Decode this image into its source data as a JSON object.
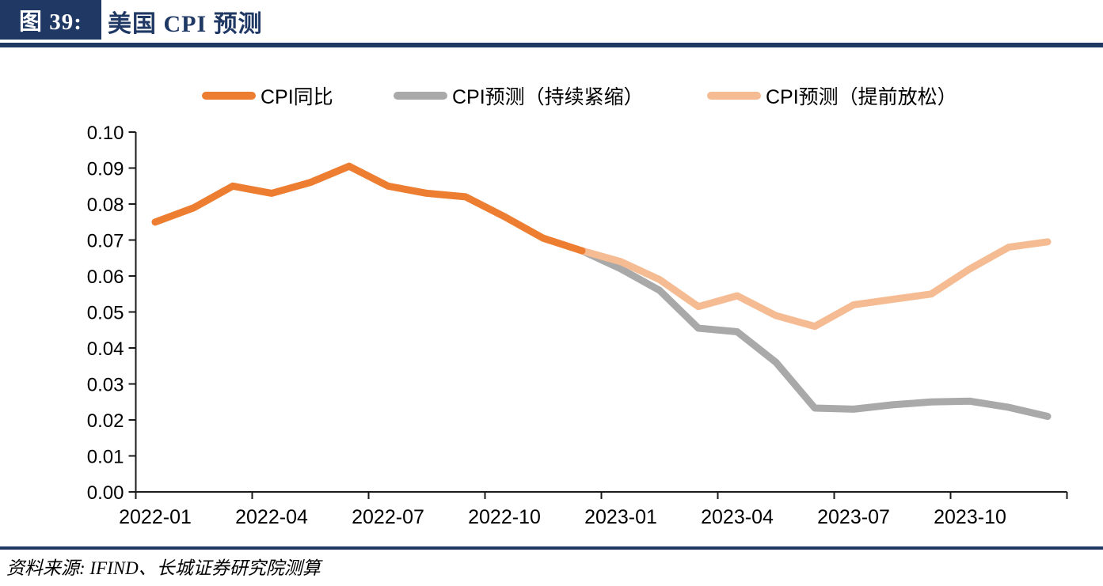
{
  "header": {
    "figure_label": "图 39:",
    "title": "美国 CPI 预测"
  },
  "footer": {
    "source": "资料来源: IFIND、长城证券研究院测算"
  },
  "colors": {
    "navy": "#1F3864",
    "orange": "#ED7D31",
    "gray": "#A9A9A9",
    "peach": "#F5BC93",
    "axis": "#1a1a1a"
  },
  "chart_data": {
    "type": "line",
    "title": "美国 CPI 预测",
    "xlabel": "",
    "ylabel": "",
    "grid": false,
    "legend_position": "top",
    "ylim": [
      0,
      0.1
    ],
    "y_tick_labels": [
      "0.00",
      "0.01",
      "0.02",
      "0.03",
      "0.04",
      "0.05",
      "0.06",
      "0.07",
      "0.08",
      "0.09",
      "0.10"
    ],
    "x_labeled_ticks": [
      "2022-01",
      "2022-04",
      "2022-07",
      "2022-10",
      "2023-01",
      "2023-04",
      "2023-07",
      "2023-10"
    ],
    "categories": [
      "2022-01",
      "2022-02",
      "2022-03",
      "2022-04",
      "2022-05",
      "2022-06",
      "2022-07",
      "2022-08",
      "2022-09",
      "2022-10",
      "2022-11",
      "2022-12",
      "2023-01",
      "2023-02",
      "2023-03",
      "2023-04",
      "2023-05",
      "2023-06",
      "2023-07",
      "2023-08",
      "2023-09",
      "2023-10",
      "2023-11",
      "2023-12"
    ],
    "series": [
      {
        "name": "CPI同比",
        "color": "#ED7D31",
        "values": [
          0.075,
          0.079,
          0.085,
          0.083,
          0.086,
          0.0905,
          0.085,
          0.083,
          0.082,
          0.0765,
          0.0705,
          0.067,
          null,
          null,
          null,
          null,
          null,
          null,
          null,
          null,
          null,
          null,
          null,
          null
        ]
      },
      {
        "name": "CPI预测（持续紧缩）",
        "color": "#A9A9A9",
        "values": [
          null,
          null,
          null,
          null,
          null,
          null,
          null,
          null,
          null,
          null,
          null,
          0.067,
          0.062,
          0.056,
          0.0455,
          0.0445,
          0.036,
          0.0233,
          0.023,
          0.0242,
          0.025,
          0.0252,
          0.0235,
          0.021
        ]
      },
      {
        "name": "CPI预测（提前放松）",
        "color": "#F5BC93",
        "values": [
          null,
          null,
          null,
          null,
          null,
          null,
          null,
          null,
          null,
          null,
          null,
          0.067,
          0.064,
          0.059,
          0.0515,
          0.0545,
          0.049,
          0.046,
          0.052,
          0.0535,
          0.055,
          0.062,
          0.068,
          0.0695
        ]
      }
    ]
  }
}
